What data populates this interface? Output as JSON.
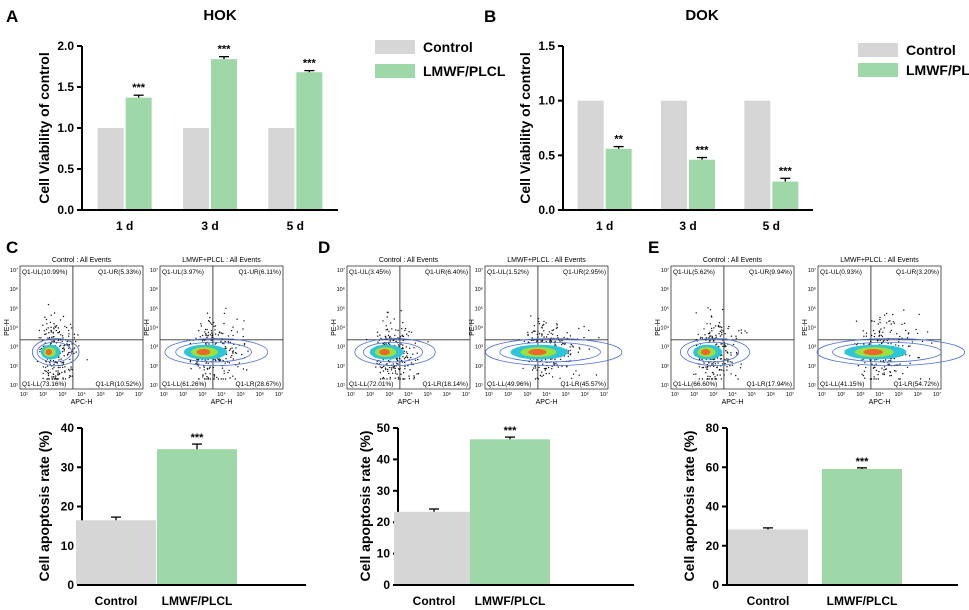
{
  "colors": {
    "control": "#d6d6d6",
    "treated": "#9ed7a8",
    "axis": "#000000",
    "flow_line": "#333333"
  },
  "chart_data": [
    {
      "panel": "A",
      "type": "bar",
      "title": "HOK",
      "ylabel": "Cell Viability of control",
      "categories": [
        "1 d",
        "3 d",
        "5 d"
      ],
      "ylim": [
        0,
        2.0
      ],
      "yticks": [
        "0.0",
        "0.5",
        "1.0",
        "1.5",
        "2.0"
      ],
      "series": [
        {
          "name": "Control",
          "values": [
            1.0,
            1.0,
            1.0
          ],
          "errors": [
            0,
            0,
            0
          ],
          "sig": [
            "",
            "",
            ""
          ]
        },
        {
          "name": "LMWF/PLCL",
          "values": [
            1.37,
            1.84,
            1.68
          ],
          "errors": [
            0.03,
            0.03,
            0.02
          ],
          "sig": [
            "***",
            "***",
            "***"
          ]
        }
      ],
      "legend": [
        "Control",
        "LMWF/PLCL"
      ]
    },
    {
      "panel": "B",
      "type": "bar",
      "title": "DOK",
      "ylabel": "Cell Viability of control",
      "categories": [
        "1 d",
        "3 d",
        "5 d"
      ],
      "ylim": [
        0,
        1.5
      ],
      "yticks": [
        "0.0",
        "0.5",
        "1.0",
        "1.5"
      ],
      "series": [
        {
          "name": "Control",
          "values": [
            1.0,
            1.0,
            1.0
          ],
          "errors": [
            0,
            0,
            0
          ],
          "sig": [
            "",
            "",
            ""
          ]
        },
        {
          "name": "LMWF/PLCL",
          "values": [
            0.56,
            0.46,
            0.26
          ],
          "errors": [
            0.02,
            0.02,
            0.03
          ],
          "sig": [
            "**",
            "***",
            "***"
          ]
        }
      ],
      "legend": [
        "Control",
        "LMWF/PLCL"
      ]
    },
    {
      "panel": "C",
      "type": "bar",
      "title": "",
      "ylabel": "Cell apoptosis rate (%)",
      "categories": [
        "Control",
        "LMWF/PLCL"
      ],
      "ylim": [
        0,
        40
      ],
      "yticks": [
        "0",
        "10",
        "20",
        "30",
        "40"
      ],
      "values": [
        16.5,
        34.6
      ],
      "errors": [
        0.8,
        1.3
      ],
      "sig": [
        "",
        "***"
      ],
      "flow": [
        {
          "title": "Control : All Events",
          "ul": "Q1-UL(10.99%)",
          "ur": "Q1-UR(5.33%)",
          "ll": "Q1-LL(73.16%)",
          "lr": "Q1-LR(10.52%)"
        },
        {
          "title": "LMWF+PLCL : All Events",
          "ul": "Q1-UL(3.97%)",
          "ur": "Q1-UR(6.11%)",
          "ll": "Q1-LL(61.26%)",
          "lr": "Q1-LR(28.67%)"
        }
      ]
    },
    {
      "panel": "D",
      "type": "bar",
      "title": "",
      "ylabel": "Cell apoptosis rate (%)",
      "categories": [
        "Control",
        "LMWF/PLCL"
      ],
      "ylim": [
        0,
        50
      ],
      "yticks": [
        "0",
        "10",
        "20",
        "30",
        "40",
        "50"
      ],
      "values": [
        23.3,
        46.4
      ],
      "errors": [
        0.9,
        0.7
      ],
      "sig": [
        "",
        "***"
      ],
      "flow": [
        {
          "title": "Control : All Events",
          "ul": "Q1-UL(3.45%)",
          "ur": "Q1-UR(6.40%)",
          "ll": "Q1-LL(72.01%)",
          "lr": "Q1-LR(18.14%)"
        },
        {
          "title": "LMWF+PLCL : All Events",
          "ul": "Q1-UL(1.52%)",
          "ur": "Q1-UR(2.95%)",
          "ll": "Q1-LL(49.96%)",
          "lr": "Q1-LR(45.57%)"
        }
      ]
    },
    {
      "panel": "E",
      "type": "bar",
      "title": "",
      "ylabel": "Cell apoptosis rate (%)",
      "categories": [
        "Control",
        "LMWF/PLCL"
      ],
      "ylim": [
        0,
        80
      ],
      "yticks": [
        "0",
        "20",
        "40",
        "60",
        "80"
      ],
      "values": [
        28.3,
        59.1
      ],
      "errors": [
        0.8,
        0.6
      ],
      "sig": [
        "",
        "***"
      ],
      "flow": [
        {
          "title": "Control : All Events",
          "ul": "Q1-UL(5.62%)",
          "ur": "Q1-UR(9.94%)",
          "ll": "Q1-LL(66.60%)",
          "lr": "Q1-LR(17.94%)"
        },
        {
          "title": "LMWF+PLCL : All Events",
          "ul": "Q1-UL(0.93%)",
          "ur": "Q1-UR(3.20%)",
          "ll": "Q1-LL(41.15%)",
          "lr": "Q1-LR(54.72%)"
        }
      ]
    }
  ],
  "flow_axes": {
    "xlabel": "APC-H",
    "ylabel": "PE-H",
    "xticks": [
      "10¹",
      "10²",
      "10³",
      "10⁴",
      "10⁵",
      "10⁶",
      "10⁷"
    ],
    "yticks": [
      "10¹",
      "10²",
      "10³",
      "10⁴",
      "10⁵",
      "10⁶",
      "10⁷"
    ]
  }
}
